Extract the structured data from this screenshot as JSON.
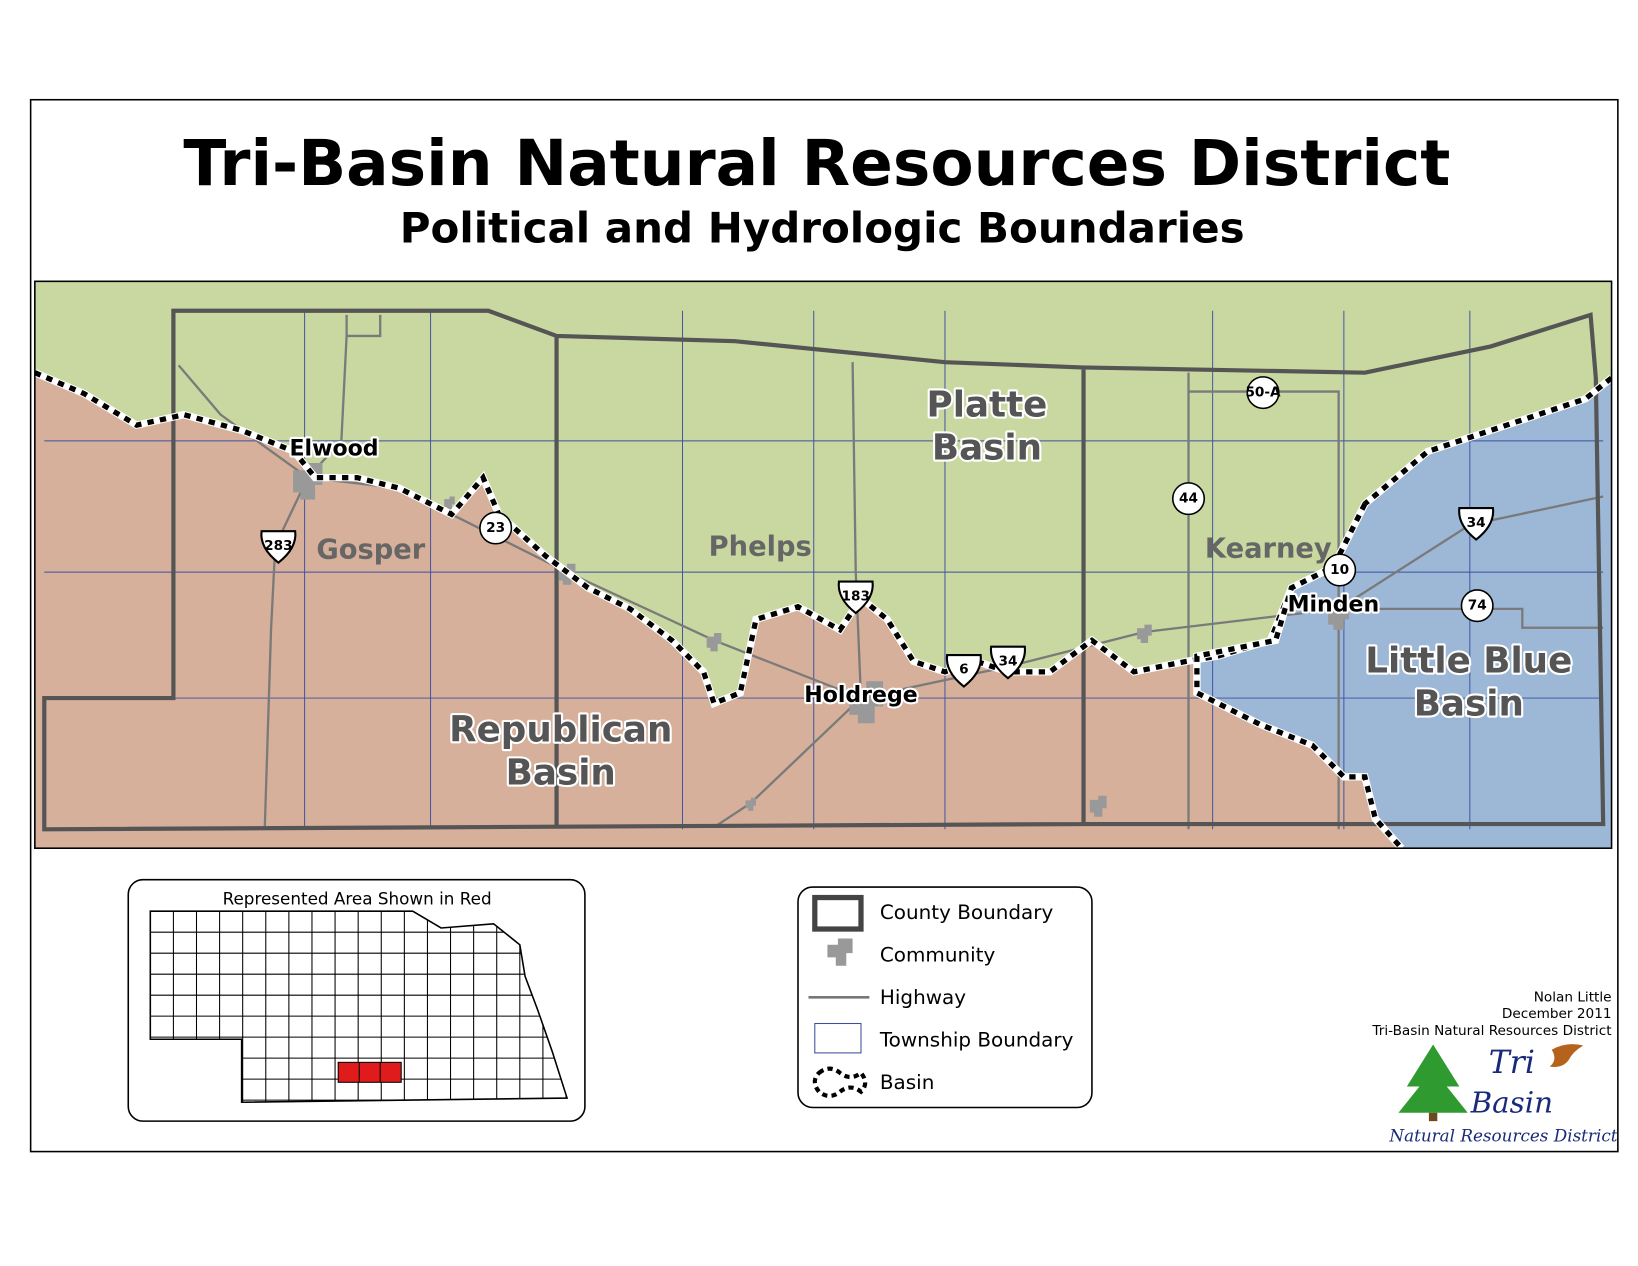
{
  "title": "Tri-Basin Natural Resources District",
  "subtitle": "Political and Hydrologic Boundaries",
  "map": {
    "basins": [
      [
        "Platte",
        "Basin"
      ],
      [
        "Republican",
        "Basin"
      ],
      [
        "Little Blue",
        "Basin"
      ]
    ],
    "counties": [
      "Gosper",
      "Phelps",
      "Kearney"
    ],
    "communities": [
      "Elwood",
      "Holdrege",
      "Minden"
    ],
    "highways": [
      "283",
      "23",
      "183",
      "6",
      "34",
      "50-A",
      "44",
      "10",
      "34",
      "74"
    ]
  },
  "inset": {
    "title": "Represented Area Shown in Red"
  },
  "legend": [
    "County Boundary",
    "Community",
    "Highway",
    "Township Boundary",
    "Basin"
  ],
  "credits": [
    "Nolan Little",
    "December 2011",
    "Tri-Basin Natural Resources District"
  ],
  "logo": {
    "line1": "Tri",
    "line2": "Basin",
    "line3": "Natural Resources District"
  }
}
